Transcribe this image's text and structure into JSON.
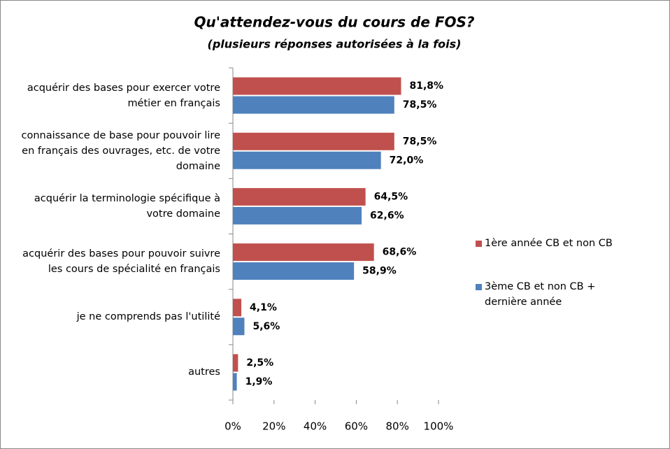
{
  "chart_data": {
    "type": "hbar",
    "title": "Qu'attendez-vous du cours de FOS?",
    "subtitle": "(plusieurs réponses autorisées à la fois)",
    "categories": [
      "acquérir des bases pour exercer votre métier en français",
      "connaissance de base pour pouvoir lire en français des ouvrages, etc. de votre domaine",
      "acquérir la terminologie spécifique à votre domaine",
      "acquérir des bases pour pouvoir suivre les cours de spécialité en français",
      "je ne comprends pas l'utilité",
      "autres"
    ],
    "series": [
      {
        "name": "1ère année CB et non CB",
        "color": "#c0504d",
        "values": [
          81.8,
          78.5,
          64.5,
          68.6,
          4.1,
          2.5
        ],
        "value_labels": [
          "81,8%",
          "78,5%",
          "64,5%",
          "68,6%",
          "4,1%",
          "2,5%"
        ]
      },
      {
        "name": "3ème CB et non CB + dernière année",
        "color": "#4f81bd",
        "values": [
          78.5,
          72.0,
          62.6,
          58.9,
          5.6,
          1.9
        ],
        "value_labels": [
          "78,5%",
          "72,0%",
          "62,6%",
          "58,9%",
          "5,6%",
          "1,9%"
        ]
      }
    ],
    "xlim": [
      0,
      100
    ],
    "xticks": [
      {
        "value": 0,
        "label": "0%"
      },
      {
        "value": 20,
        "label": "20%"
      },
      {
        "value": 40,
        "label": "40%"
      },
      {
        "value": 60,
        "label": "60%"
      },
      {
        "value": 80,
        "label": "80%"
      },
      {
        "value": 100,
        "label": "100%"
      }
    ],
    "grid": false,
    "legend": "right"
  }
}
